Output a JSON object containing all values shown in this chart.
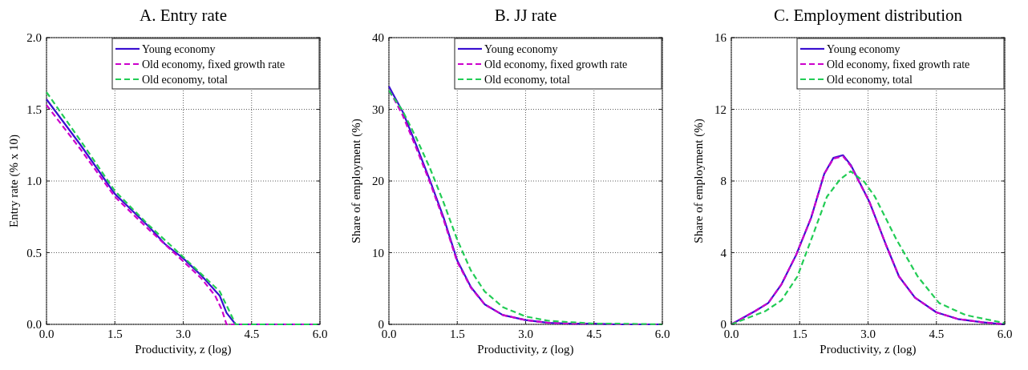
{
  "chart_data": [
    {
      "type": "line",
      "title": "A. Entry rate",
      "xlabel": "Productivity, z (log)",
      "ylabel": "Entry rate (% x 10)",
      "xlim": [
        0,
        6
      ],
      "ylim": [
        0,
        2
      ],
      "xticks": [
        {
          "value": 0,
          "label": "0.0"
        },
        {
          "value": 1.5,
          "label": "1.5"
        },
        {
          "value": 3,
          "label": "3.0"
        },
        {
          "value": 4.5,
          "label": "4.5"
        },
        {
          "value": 6,
          "label": "6.0"
        }
      ],
      "yticks": [
        {
          "value": 0,
          "label": "0.0"
        },
        {
          "value": 0.5,
          "label": "0.5"
        },
        {
          "value": 1,
          "label": "1.0"
        },
        {
          "value": 1.5,
          "label": "1.5"
        },
        {
          "value": 2,
          "label": "2.0"
        }
      ],
      "grid": true,
      "legend": "top right",
      "series": [
        {
          "name": "Young economy",
          "color": "#3a0fd0",
          "line_style": "solid",
          "x": [
            0,
            0.75,
            1.5,
            2.25,
            2.6,
            3,
            3.4,
            3.8,
            3.95,
            4.15,
            5,
            6
          ],
          "values": [
            1.57,
            1.25,
            0.91,
            0.68,
            0.56,
            0.46,
            0.34,
            0.2,
            0.08,
            0,
            0,
            0
          ]
        },
        {
          "name": "Old economy, fixed growth rate",
          "color": "#cc00cc",
          "line_style": "dashed",
          "x": [
            0,
            0.75,
            1.5,
            2.25,
            3,
            3.4,
            3.7,
            3.85,
            3.95,
            5,
            6
          ],
          "values": [
            1.53,
            1.22,
            0.89,
            0.66,
            0.44,
            0.32,
            0.2,
            0.1,
            0,
            0,
            0
          ]
        },
        {
          "name": "Old economy, total",
          "color": "#22cc55",
          "line_style": "dashed",
          "x": [
            0,
            0.75,
            1.5,
            2.25,
            3,
            3.4,
            3.8,
            4,
            4.15,
            5,
            6
          ],
          "values": [
            1.62,
            1.28,
            0.93,
            0.69,
            0.47,
            0.35,
            0.23,
            0.1,
            0,
            0,
            0
          ]
        }
      ]
    },
    {
      "type": "line",
      "title": "B. JJ rate",
      "xlabel": "Productivity, z (log)",
      "ylabel": "Share of employment (%)",
      "xlim": [
        0,
        6
      ],
      "ylim": [
        0,
        40
      ],
      "xticks": [
        {
          "value": 0,
          "label": "0.0"
        },
        {
          "value": 1.5,
          "label": "1.5"
        },
        {
          "value": 3,
          "label": "3.0"
        },
        {
          "value": 4.5,
          "label": "4.5"
        },
        {
          "value": 6,
          "label": "6.0"
        }
      ],
      "yticks": [
        0,
        10,
        20,
        30,
        40
      ],
      "grid": true,
      "legend": "top right",
      "series": [
        {
          "name": "Young economy",
          "color": "#3a0fd0",
          "line_style": "solid",
          "x": [
            0,
            0.1,
            0.3,
            0.6,
            0.9,
            1.2,
            1.5,
            1.8,
            2.1,
            2.5,
            3,
            3.5,
            4,
            4.5,
            5,
            6
          ],
          "values": [
            33.2,
            32,
            29.7,
            25,
            20.1,
            14.9,
            8.9,
            5.2,
            2.8,
            1.3,
            0.6,
            0.2,
            0.1,
            0.1,
            0,
            0
          ]
        },
        {
          "name": "Old economy, fixed growth rate",
          "color": "#cc00cc",
          "line_style": "dashed",
          "x": [
            0,
            0.1,
            0.3,
            0.6,
            0.9,
            1.2,
            1.5,
            1.8,
            2.1,
            2.5,
            3,
            3.5,
            4,
            4.5,
            5,
            6
          ],
          "values": [
            32.6,
            31.6,
            29.2,
            24.6,
            19.8,
            14.6,
            8.7,
            5.1,
            2.8,
            1.3,
            0.6,
            0.2,
            0.1,
            0.1,
            0,
            0
          ]
        },
        {
          "name": "Old economy, total",
          "color": "#22cc55",
          "line_style": "dashed",
          "x": [
            0,
            0.3,
            0.6,
            0.9,
            1.2,
            1.5,
            1.8,
            2.1,
            2.5,
            3,
            3.5,
            4,
            4.5,
            5,
            6
          ],
          "values": [
            32.6,
            29.8,
            26,
            21.8,
            17,
            11.8,
            7.5,
            4.6,
            2.4,
            1.1,
            0.5,
            0.3,
            0.1,
            0.1,
            0
          ]
        }
      ]
    },
    {
      "type": "line",
      "title": "C. Employment distribution",
      "xlabel": "Productivity, z (log)",
      "ylabel": "Share of employment (%)",
      "xlim": [
        0,
        6
      ],
      "ylim": [
        0,
        16
      ],
      "xticks": [
        {
          "value": 0,
          "label": "0.0"
        },
        {
          "value": 1.5,
          "label": "1.5"
        },
        {
          "value": 3,
          "label": "3.0"
        },
        {
          "value": 4.5,
          "label": "4.5"
        },
        {
          "value": 6,
          "label": "6.0"
        }
      ],
      "yticks": [
        0,
        4,
        8,
        12,
        16
      ],
      "grid": true,
      "legend": "top right",
      "series": [
        {
          "name": "Young economy",
          "color": "#3a0fd0",
          "line_style": "solid",
          "x": [
            0,
            0.52,
            0.81,
            1.1,
            1.42,
            1.75,
            2.04,
            2.24,
            2.45,
            2.62,
            3.03,
            3.39,
            3.68,
            4.03,
            4.5,
            4.97,
            5.5,
            6
          ],
          "values": [
            0,
            0.74,
            1.19,
            2.23,
            3.86,
            5.94,
            8.4,
            9.29,
            9.44,
            8.9,
            6.84,
            4.46,
            2.67,
            1.49,
            0.67,
            0.3,
            0.12,
            0
          ]
        },
        {
          "name": "Old economy, fixed growth rate",
          "color": "#cc00cc",
          "line_style": "dashed",
          "x": [
            0,
            0.52,
            0.81,
            1.1,
            1.42,
            1.75,
            2.04,
            2.24,
            2.45,
            2.62,
            3.03,
            3.39,
            3.68,
            4.03,
            4.5,
            4.97,
            5.5,
            6
          ],
          "values": [
            0,
            0.74,
            1.19,
            2.23,
            3.86,
            5.94,
            8.4,
            9.25,
            9.38,
            8.85,
            6.84,
            4.46,
            2.67,
            1.49,
            0.67,
            0.3,
            0.12,
            0
          ]
        },
        {
          "name": "Old economy, total",
          "color": "#22cc55",
          "line_style": "dashed",
          "x": [
            0,
            0.75,
            1.1,
            1.45,
            1.8,
            2.1,
            2.39,
            2.62,
            2.92,
            3.15,
            3.62,
            4.09,
            4.56,
            5.14,
            6
          ],
          "values": [
            0,
            0.74,
            1.34,
            2.67,
            5.05,
            7.13,
            8.1,
            8.54,
            7.95,
            7.13,
            4.75,
            2.67,
            1.19,
            0.52,
            0.07
          ]
        }
      ]
    }
  ]
}
